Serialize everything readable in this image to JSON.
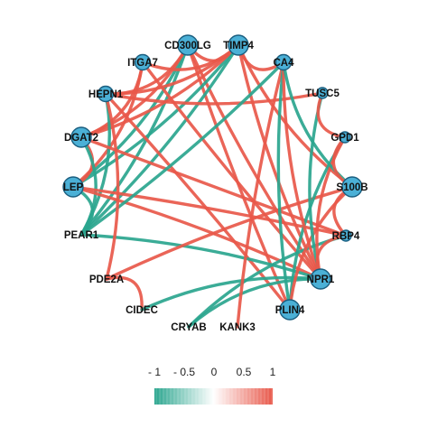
{
  "colors": {
    "positive": "#e8584a",
    "negative": "#2aa58e",
    "node_fill": "#4bb0d6",
    "node_stroke": "#1b5f80",
    "text": "#111111"
  },
  "nodes": [
    {
      "id": "CD300LG",
      "label": "CD300LG",
      "size": "large"
    },
    {
      "id": "TIMP4",
      "label": "TIMP4",
      "size": "large"
    },
    {
      "id": "CA4",
      "label": "CA4",
      "size": "medium"
    },
    {
      "id": "TUSC5",
      "label": "TUSC5",
      "size": "small"
    },
    {
      "id": "GPD1",
      "label": "GPD1",
      "size": "small"
    },
    {
      "id": "S100B",
      "label": "S100B",
      "size": "large"
    },
    {
      "id": "RBP4",
      "label": "RBP4",
      "size": "small"
    },
    {
      "id": "NPR1",
      "label": "NPR1",
      "size": "large"
    },
    {
      "id": "PLIN4",
      "label": "PLIN4",
      "size": "large"
    },
    {
      "id": "KANK3",
      "label": "KANK3",
      "size": "none"
    },
    {
      "id": "CRYAB",
      "label": "CRYAB",
      "size": "none"
    },
    {
      "id": "CIDEC",
      "label": "CIDEC",
      "size": "none"
    },
    {
      "id": "PDE2A",
      "label": "PDE2A",
      "size": "none"
    },
    {
      "id": "PEAR1",
      "label": "PEAR1",
      "size": "none"
    },
    {
      "id": "LEP",
      "label": "LEP",
      "size": "large"
    },
    {
      "id": "DGAT2",
      "label": "DGAT2",
      "size": "large"
    },
    {
      "id": "HEPN1",
      "label": "HEPN1",
      "size": "medium"
    },
    {
      "id": "ITGA7",
      "label": "ITGA7",
      "size": "medium"
    }
  ],
  "edges": [
    {
      "source": "CD300LG",
      "target": "NPR1",
      "sign": "positive"
    },
    {
      "source": "CD300LG",
      "target": "PLIN4",
      "sign": "positive"
    },
    {
      "source": "CD300LG",
      "target": "LEP",
      "sign": "negative"
    },
    {
      "source": "CD300LG",
      "target": "PEAR1",
      "sign": "negative"
    },
    {
      "source": "CD300LG",
      "target": "DGAT2",
      "sign": "positive"
    },
    {
      "source": "CD300LG",
      "target": "HEPN1",
      "sign": "positive"
    },
    {
      "source": "CD300LG",
      "target": "TIMP4",
      "sign": "positive"
    },
    {
      "source": "TIMP4",
      "target": "LEP",
      "sign": "negative"
    },
    {
      "source": "TIMP4",
      "target": "DGAT2",
      "sign": "positive"
    },
    {
      "source": "TIMP4",
      "target": "PEAR1",
      "sign": "negative"
    },
    {
      "source": "TIMP4",
      "target": "NPR1",
      "sign": "positive"
    },
    {
      "source": "TIMP4",
      "target": "S100B",
      "sign": "positive"
    },
    {
      "source": "TIMP4",
      "target": "CA4",
      "sign": "positive"
    },
    {
      "source": "TIMP4",
      "target": "HEPN1",
      "sign": "positive"
    },
    {
      "source": "TIMP4",
      "target": "ITGA7",
      "sign": "positive"
    },
    {
      "source": "ITGA7",
      "target": "LEP",
      "sign": "positive"
    },
    {
      "source": "ITGA7",
      "target": "NPR1",
      "sign": "positive"
    },
    {
      "source": "ITGA7",
      "target": "DGAT2",
      "sign": "positive"
    },
    {
      "source": "HEPN1",
      "target": "PLIN4",
      "sign": "positive"
    },
    {
      "source": "HEPN1",
      "target": "PEAR1",
      "sign": "negative"
    },
    {
      "source": "HEPN1",
      "target": "TUSC5",
      "sign": "positive"
    },
    {
      "source": "DGAT2",
      "target": "LEP",
      "sign": "positive"
    },
    {
      "source": "DGAT2",
      "target": "PEAR1",
      "sign": "negative"
    },
    {
      "source": "DGAT2",
      "target": "RBP4",
      "sign": "positive"
    },
    {
      "source": "LEP",
      "target": "PEAR1",
      "sign": "negative"
    },
    {
      "source": "LEP",
      "target": "RBP4",
      "sign": "positive"
    },
    {
      "source": "LEP",
      "target": "NPR1",
      "sign": "positive"
    },
    {
      "source": "PEAR1",
      "target": "NPR1",
      "sign": "negative"
    },
    {
      "source": "PEAR1",
      "target": "CA4",
      "sign": "negative"
    },
    {
      "source": "PDE2A",
      "target": "S100B",
      "sign": "positive"
    },
    {
      "source": "PDE2A",
      "target": "CIDEC",
      "sign": "positive"
    },
    {
      "source": "PDE2A",
      "target": "HEPN1",
      "sign": "positive"
    },
    {
      "source": "CIDEC",
      "target": "NPR1",
      "sign": "negative"
    },
    {
      "source": "CRYAB",
      "target": "RBP4",
      "sign": "negative"
    },
    {
      "source": "CRYAB",
      "target": "NPR1",
      "sign": "negative"
    },
    {
      "source": "KANK3",
      "target": "CA4",
      "sign": "positive"
    },
    {
      "source": "PLIN4",
      "target": "CA4",
      "sign": "negative"
    },
    {
      "source": "PLIN4",
      "target": "GPD1",
      "sign": "negative"
    },
    {
      "source": "PLIN4",
      "target": "S100B",
      "sign": "positive"
    },
    {
      "source": "NPR1",
      "target": "CA4",
      "sign": "positive"
    },
    {
      "source": "NPR1",
      "target": "TUSC5",
      "sign": "negative"
    },
    {
      "source": "NPR1",
      "target": "GPD1",
      "sign": "positive"
    },
    {
      "source": "CA4",
      "target": "S100B",
      "sign": "negative"
    },
    {
      "source": "TUSC5",
      "target": "GPD1",
      "sign": "positive"
    },
    {
      "source": "GPD1",
      "target": "S100B",
      "sign": "positive"
    },
    {
      "source": "S100B",
      "target": "RBP4",
      "sign": "positive"
    },
    {
      "source": "RBP4",
      "target": "NPR1",
      "sign": "positive"
    }
  ],
  "legend": {
    "ticks": [
      "- 1",
      "- 0.5",
      "0",
      "0.5",
      "1"
    ],
    "gradient": [
      "#2aa58e",
      "#ffffff",
      "#e8584a"
    ]
  }
}
